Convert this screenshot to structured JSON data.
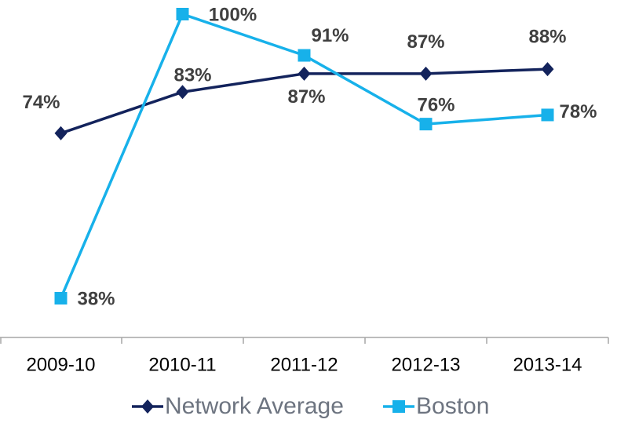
{
  "chart_data": {
    "type": "line",
    "categories": [
      "2009-10",
      "2010-11",
      "2011-12",
      "2012-13",
      "2013-14"
    ],
    "series": [
      {
        "name": "Network Average",
        "color": "#13235c",
        "marker": "diamond",
        "values": [
          74,
          83,
          87,
          87,
          88
        ],
        "value_labels": [
          "74%",
          "83%",
          "87%",
          "87%",
          "88%"
        ]
      },
      {
        "name": "Boston",
        "color": "#17b1ea",
        "marker": "square",
        "values": [
          38,
          100,
          91,
          76,
          78
        ],
        "value_labels": [
          "38%",
          "100%",
          "91%",
          "76%",
          "78%"
        ]
      }
    ],
    "legend": "bottom"
  }
}
